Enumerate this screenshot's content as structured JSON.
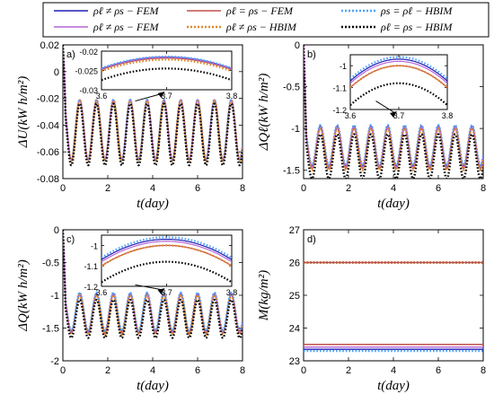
{
  "legend": [
    {
      "label": "ρℓ ≠ ρs − FEM",
      "color": "#1f1fb4",
      "style": "solid"
    },
    {
      "label": "ρℓ = ρs − FEM",
      "color": "#c0504d",
      "style": "solid"
    },
    {
      "label": "ρs = ρℓ − HBIM",
      "color": "#4fa3f7",
      "style": "dotted"
    },
    {
      "label": "ρℓ ≠ ρs − FEM",
      "color": "#b565d6",
      "style": "solid"
    },
    {
      "label": "ρℓ ≠ ρs − HBIM",
      "color": "#e08a2c",
      "style": "dotted"
    },
    {
      "label": "ρℓ = ρs − HBIM",
      "color": "#000000",
      "style": "dotted"
    }
  ],
  "chart_data": [
    {
      "type": "line",
      "panel": "a)",
      "xlabel": "t(day)",
      "ylabel": "ΔU(kW h/m²)",
      "xlim": [
        0,
        8
      ],
      "ylim": [
        -0.08,
        0.02
      ],
      "xticks": [
        "0",
        "2",
        "4",
        "6",
        "8"
      ],
      "yticks": [
        "0.02",
        "0",
        "-0.02",
        "-0.04",
        "-0.06",
        "-0.08"
      ],
      "period_days": 0.75,
      "initial_value": 0.02,
      "series": [
        {
          "color": "#1f1fb4",
          "style": "solid",
          "max": -0.021,
          "min": -0.066
        },
        {
          "color": "#c0504d",
          "style": "solid",
          "max": -0.021,
          "min": -0.066
        },
        {
          "color": "#b565d6",
          "style": "solid",
          "max": -0.021,
          "min": -0.066
        },
        {
          "color": "#4fa3f7",
          "style": "dotted",
          "max": -0.021,
          "min": -0.066
        },
        {
          "color": "#e08a2c",
          "style": "dotted",
          "max": -0.022,
          "min": -0.067
        },
        {
          "color": "#000000",
          "style": "dotted",
          "max": -0.024,
          "min": -0.07
        }
      ],
      "inset": {
        "xlim": [
          3.6,
          3.8
        ],
        "ylim": [
          -0.03,
          -0.02
        ],
        "xticks": [
          "3.6",
          "3.7",
          "3.8"
        ],
        "yticks": [
          "-0.02",
          "-0.025",
          "-0.03"
        ],
        "peak_x": 3.7,
        "series_peaks": [
          {
            "color": "#1f1fb4",
            "style": "solid",
            "peak": -0.0215,
            "edge": -0.0245
          },
          {
            "color": "#c0504d",
            "style": "solid",
            "peak": -0.0218,
            "edge": -0.0248
          },
          {
            "color": "#b565d6",
            "style": "solid",
            "peak": -0.0216,
            "edge": -0.0246
          },
          {
            "color": "#4fa3f7",
            "style": "dotted",
            "peak": -0.0214,
            "edge": -0.0244
          },
          {
            "color": "#e08a2c",
            "style": "dotted",
            "peak": -0.0222,
            "edge": -0.0252
          },
          {
            "color": "#000000",
            "style": "dotted",
            "peak": -0.0245,
            "edge": -0.0275
          }
        ]
      }
    },
    {
      "type": "line",
      "panel": "b)",
      "xlabel": "t(day)",
      "ylabel": "ΔQℓ(kW h/m²)",
      "xlim": [
        0,
        8
      ],
      "ylim": [
        -1.6,
        0
      ],
      "xticks": [
        "0",
        "2",
        "4",
        "6",
        "8"
      ],
      "yticks": [
        "0",
        "-0.5",
        "-1",
        "-1.5"
      ],
      "period_days": 0.75,
      "initial_value": 0,
      "series": [
        {
          "color": "#1f1fb4",
          "style": "solid",
          "max": -0.97,
          "min": -1.45
        },
        {
          "color": "#c0504d",
          "style": "solid",
          "max": -1.0,
          "min": -1.48
        },
        {
          "color": "#b565d6",
          "style": "solid",
          "max": -0.98,
          "min": -1.46
        },
        {
          "color": "#4fa3f7",
          "style": "dotted",
          "max": -0.96,
          "min": -1.44
        },
        {
          "color": "#e08a2c",
          "style": "dotted",
          "max": -1.0,
          "min": -1.5
        },
        {
          "color": "#000000",
          "style": "dotted",
          "max": -1.07,
          "min": -1.6
        }
      ],
      "inset": {
        "xlim": [
          3.6,
          3.8
        ],
        "ylim": [
          -1.2,
          -0.95
        ],
        "xticks": [
          "3.6",
          "3.7",
          "3.8"
        ],
        "yticks": [
          "-1",
          "-1.1",
          "-1.2"
        ],
        "peak_x": 3.7,
        "series_peaks": [
          {
            "color": "#1f1fb4",
            "style": "solid",
            "peak": -0.97,
            "edge": -1.07
          },
          {
            "color": "#c0504d",
            "style": "solid",
            "peak": -1.0,
            "edge": -1.1
          },
          {
            "color": "#b565d6",
            "style": "solid",
            "peak": -0.98,
            "edge": -1.08
          },
          {
            "color": "#4fa3f7",
            "style": "dotted",
            "peak": -0.96,
            "edge": -1.06
          },
          {
            "color": "#e08a2c",
            "style": "dotted",
            "peak": -1.0,
            "edge": -1.1
          },
          {
            "color": "#000000",
            "style": "dotted",
            "peak": -1.08,
            "edge": -1.18
          }
        ]
      }
    },
    {
      "type": "line",
      "panel": "c)",
      "xlabel": "t(day)",
      "ylabel": "ΔQ(kW h/m²)",
      "xlim": [
        0,
        8
      ],
      "ylim": [
        -2,
        0
      ],
      "xticks": [
        "0",
        "2",
        "4",
        "6",
        "8"
      ],
      "yticks": [
        "0",
        "-0.5",
        "-1",
        "-1.5",
        "-2"
      ],
      "period_days": 0.75,
      "initial_value": 0,
      "series": [
        {
          "color": "#1f1fb4",
          "style": "solid",
          "max": -0.97,
          "min": -1.55
        },
        {
          "color": "#c0504d",
          "style": "solid",
          "max": -1.0,
          "min": -1.58
        },
        {
          "color": "#b565d6",
          "style": "solid",
          "max": -0.98,
          "min": -1.56
        },
        {
          "color": "#4fa3f7",
          "style": "dotted",
          "max": -0.96,
          "min": -1.54
        },
        {
          "color": "#e08a2c",
          "style": "dotted",
          "max": -1.0,
          "min": -1.6
        },
        {
          "color": "#000000",
          "style": "dotted",
          "max": -1.07,
          "min": -1.65
        }
      ],
      "inset": {
        "xlim": [
          3.6,
          3.8
        ],
        "ylim": [
          -1.2,
          -0.95
        ],
        "xticks": [
          "3.6",
          "3.7",
          "3.8"
        ],
        "yticks": [
          "-1",
          "-1.1",
          "-1.2"
        ],
        "peak_x": 3.7,
        "series_peaks": [
          {
            "color": "#1f1fb4",
            "style": "solid",
            "peak": -0.97,
            "edge": -1.07
          },
          {
            "color": "#c0504d",
            "style": "solid",
            "peak": -1.0,
            "edge": -1.1
          },
          {
            "color": "#b565d6",
            "style": "solid",
            "peak": -0.98,
            "edge": -1.08
          },
          {
            "color": "#4fa3f7",
            "style": "dotted",
            "peak": -0.96,
            "edge": -1.06
          },
          {
            "color": "#e08a2c",
            "style": "dotted",
            "peak": -1.0,
            "edge": -1.1
          },
          {
            "color": "#000000",
            "style": "dotted",
            "peak": -1.08,
            "edge": -1.18
          }
        ]
      }
    },
    {
      "type": "line",
      "panel": "d)",
      "xlabel": "t(day)",
      "ylabel": "M(kg/m²)",
      "xlim": [
        0,
        8
      ],
      "ylim": [
        23,
        27
      ],
      "xticks": [
        "0",
        "2",
        "4",
        "6",
        "8"
      ],
      "yticks": [
        "27",
        "26",
        "25",
        "24",
        "23"
      ],
      "series": [
        {
          "color": "#000000",
          "style": "dotted",
          "value": 26.0
        },
        {
          "color": "#e08a2c",
          "style": "dotted",
          "value": 26.0
        },
        {
          "color": "#c0504d",
          "style": "solid",
          "value": 26.0
        },
        {
          "color": "#c0504d",
          "style": "solid",
          "value": 23.5
        },
        {
          "color": "#b565d6",
          "style": "solid",
          "value": 23.42
        },
        {
          "color": "#1f1fb4",
          "style": "solid",
          "value": 23.35
        },
        {
          "color": "#4fa3f7",
          "style": "dotted",
          "value": 23.3
        }
      ]
    }
  ]
}
